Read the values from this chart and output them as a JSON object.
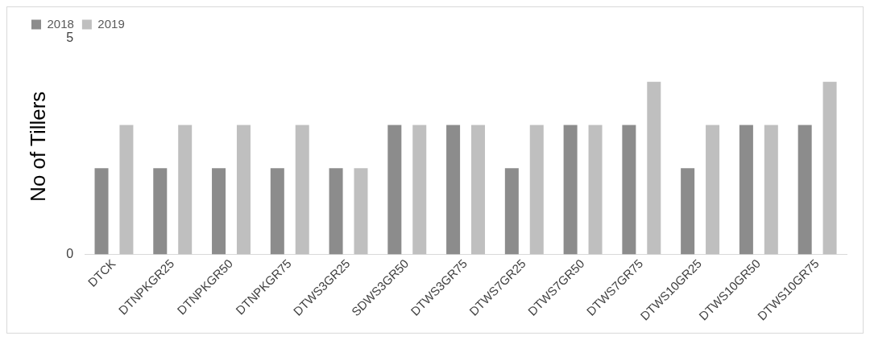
{
  "chart_data": {
    "type": "bar",
    "ylabel": "No of Tillers",
    "categories": [
      "DTCK",
      "DTNPKGR25",
      "DTNPKGR50",
      "DTNPKGR75",
      "DTWS3GR25",
      "SDWS3GR50",
      "DTWS3GR75",
      "DTWS7GR25",
      "DTWS7GR50",
      "DTWS7GR75",
      "DTWS10GR25",
      "DTWS10GR50",
      "DTWS10GR75"
    ],
    "series": [
      {
        "name": "2018",
        "color": "#8c8c8c",
        "values": [
          2,
          2,
          2,
          2,
          2,
          3,
          3,
          2,
          3,
          3,
          2,
          3,
          3
        ]
      },
      {
        "name": "2019",
        "color": "#bfbfbf",
        "values": [
          3,
          3,
          3,
          3,
          2,
          3,
          3,
          3,
          3,
          4,
          3,
          3,
          4
        ]
      }
    ],
    "ylim": [
      0,
      5
    ],
    "yticks": [
      0,
      5
    ],
    "grid": false,
    "legend": "top left"
  }
}
